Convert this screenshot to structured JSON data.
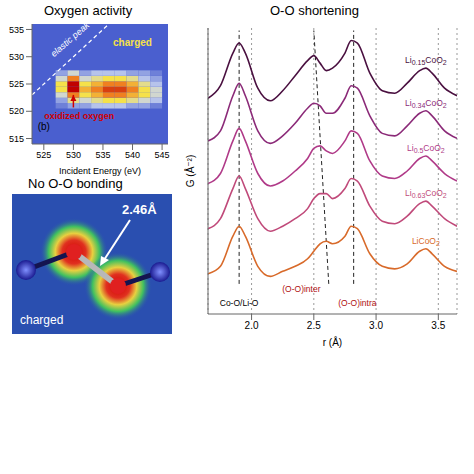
{
  "chart_data": [
    {
      "type": "heatmap",
      "title": "Oxygen activity",
      "x_label": "Incident Energy (eV)",
      "xlim": [
        523,
        546
      ],
      "xticks": [
        525,
        530,
        535,
        540,
        545
      ],
      "ylim": [
        514,
        536
      ],
      "yticks": [
        515,
        520,
        525,
        530,
        535
      ],
      "x": [
        528,
        530,
        532,
        534,
        536,
        538,
        540,
        542,
        544
      ],
      "y": [
        521,
        522,
        523,
        524,
        525,
        526,
        527
      ],
      "z": [
        [
          0.1,
          0.2,
          0.2,
          0.3,
          0.3,
          0.3,
          0.2,
          0.2,
          0.1
        ],
        [
          0.2,
          0.5,
          0.4,
          0.5,
          0.6,
          0.6,
          0.5,
          0.4,
          0.3
        ],
        [
          0.4,
          0.8,
          0.6,
          0.7,
          0.8,
          0.8,
          0.7,
          0.6,
          0.4
        ],
        [
          0.6,
          1.0,
          0.7,
          0.8,
          0.9,
          0.9,
          0.8,
          0.6,
          0.4
        ],
        [
          0.6,
          1.0,
          0.6,
          0.7,
          0.8,
          0.8,
          0.7,
          0.5,
          0.3
        ],
        [
          0.4,
          0.8,
          0.4,
          0.5,
          0.6,
          0.6,
          0.5,
          0.3,
          0.2
        ],
        [
          0.2,
          0.4,
          0.2,
          0.3,
          0.3,
          0.3,
          0.2,
          0.2,
          0.1
        ]
      ],
      "annotations": {
        "elastic": "elastic peak",
        "state": "charged",
        "oxidized": "oxidized oxygen",
        "panel": "(b)"
      }
    },
    {
      "type": "line",
      "title": "O-O shortening",
      "x_label": "r (Å)",
      "y_label": "G (Å⁻²)",
      "xlim": [
        1.65,
        3.65
      ],
      "xticks": [
        {
          "value": 2,
          "label": "2.0"
        },
        {
          "value": 2.5,
          "label": "2.5"
        },
        {
          "value": 3,
          "label": "3.0"
        },
        {
          "value": 3.5,
          "label": "3.5"
        }
      ],
      "ylim": [
        -1,
        10.4
      ],
      "tick_labels": "x",
      "grid": true,
      "x": [
        1.65,
        1.75,
        1.85,
        1.9,
        1.95,
        2.05,
        2.15,
        2.25,
        2.35,
        2.45,
        2.5,
        2.55,
        2.6,
        2.65,
        2.75,
        2.8,
        2.85,
        2.95,
        3.05,
        3.15,
        3.25,
        3.35,
        3.4,
        3.45,
        3.55,
        3.65
      ],
      "series": [
        {
          "name": "Li0.15CoO2",
          "color": "#4a1040",
          "values": [
            7.6,
            8.1,
            9.4,
            9.8,
            9.4,
            8.0,
            7.5,
            7.9,
            8.5,
            9.1,
            9.3,
            9.0,
            8.7,
            8.8,
            9.4,
            9.9,
            9.8,
            8.6,
            7.9,
            7.8,
            8.2,
            8.7,
            8.8,
            8.6,
            8.0,
            7.7
          ]
        },
        {
          "name": "Li0.34CoO2",
          "color": "#8b2a78",
          "values": [
            5.9,
            6.3,
            7.7,
            8.2,
            7.7,
            6.3,
            5.8,
            6.1,
            6.6,
            7.2,
            7.4,
            7.3,
            7.0,
            7.0,
            7.6,
            8.1,
            8.0,
            6.9,
            6.2,
            6.1,
            6.5,
            7.0,
            7.1,
            6.9,
            6.3,
            6.0
          ]
        },
        {
          "name": "Li0.5CoO2",
          "color": "#b03a88",
          "values": [
            4.2,
            4.6,
            5.9,
            6.4,
            5.9,
            4.6,
            4.1,
            4.3,
            4.7,
            5.2,
            5.6,
            5.7,
            5.5,
            5.4,
            5.9,
            6.3,
            6.2,
            5.1,
            4.5,
            4.4,
            4.7,
            5.2,
            5.3,
            5.1,
            4.6,
            4.3
          ]
        },
        {
          "name": "Li0.63CoO2",
          "color": "#c04a7a",
          "values": [
            2.4,
            2.8,
            4.0,
            4.5,
            4.0,
            2.8,
            2.3,
            2.5,
            2.8,
            3.2,
            3.6,
            3.8,
            3.8,
            3.6,
            4.0,
            4.4,
            4.3,
            3.3,
            2.7,
            2.6,
            2.9,
            3.4,
            3.5,
            3.3,
            2.8,
            2.5
          ]
        },
        {
          "name": "LiCoO2",
          "color": "#d86a2a",
          "values": [
            0.6,
            0.9,
            2.1,
            2.5,
            2.1,
            0.9,
            0.5,
            0.7,
            0.9,
            1.2,
            1.5,
            1.8,
            1.9,
            1.8,
            2.1,
            2.5,
            2.4,
            1.4,
            0.9,
            0.8,
            1.0,
            1.5,
            1.6,
            1.4,
            0.9,
            0.7
          ]
        }
      ],
      "guides": [
        {
          "label": "Co-O/Li-O",
          "x": [
            1.9,
            1.9
          ],
          "y": [
            0.2,
            10.3
          ]
        },
        {
          "label": "(O-O)inter",
          "x": [
            2.62,
            2.5
          ],
          "y": [
            0.2,
            10.3
          ]
        },
        {
          "label": "(O-O)intra",
          "x": [
            2.82,
            2.82
          ],
          "y": [
            0.2,
            10.3
          ]
        }
      ]
    }
  ],
  "diagram": {
    "title": "No O-O bonding",
    "distance_label": "2.46Å",
    "state": "charged"
  }
}
